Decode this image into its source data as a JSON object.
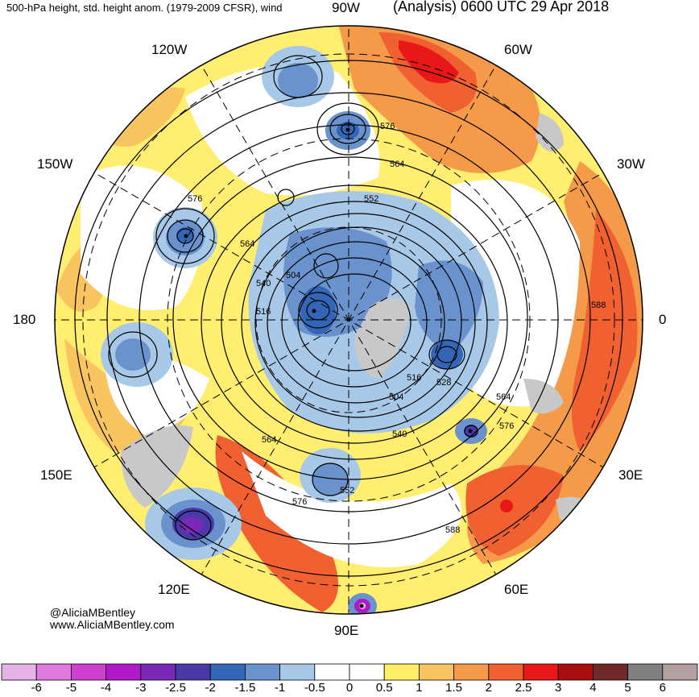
{
  "header": {
    "left": "500-hPa height, std. height anom. (1979-2009 CFSR), wind",
    "right": "(Analysis) 0600 UTC 29 Apr 2018"
  },
  "longitude_labels": {
    "top": "90W",
    "top_left": "120W",
    "top_right": "60W",
    "upper_left": "150W",
    "upper_right": "30W",
    "left": "180",
    "right": "0",
    "lower_left": "150E",
    "lower_right": "30E",
    "bottom_left": "120E",
    "bottom_right": "60E",
    "bottom": "90E"
  },
  "contour_labels": [
    "576",
    "564",
    "552",
    "576",
    "564",
    "540",
    "504",
    "516",
    "588",
    "516",
    "528",
    "504",
    "564",
    "576",
    "540",
    "564",
    "552",
    "576",
    "588"
  ],
  "credit": {
    "line1": "@AliciaMBentley",
    "line2": "www.AliciaMBentley.com"
  },
  "colorbar": {
    "labels": [
      "-6",
      "-5",
      "-4",
      "-3",
      "-2.5",
      "-2",
      "-1.5",
      "-1",
      "-0.5",
      "0",
      "0.5",
      "1",
      "1.5",
      "2",
      "2.5",
      "3",
      "4",
      "5",
      "6"
    ],
    "colors": [
      "#e6b3e6",
      "#e07ae0",
      "#d040d0",
      "#b018c8",
      "#7a28b8",
      "#4a3aa8",
      "#3466b8",
      "#6a92cc",
      "#a8c8e8",
      "#ffffff",
      "#ffffff",
      "#ffee66",
      "#f8c460",
      "#f49a48",
      "#f06030",
      "#e81818",
      "#a81010",
      "#702828",
      "#808080",
      "#b0a0a0"
    ]
  }
}
